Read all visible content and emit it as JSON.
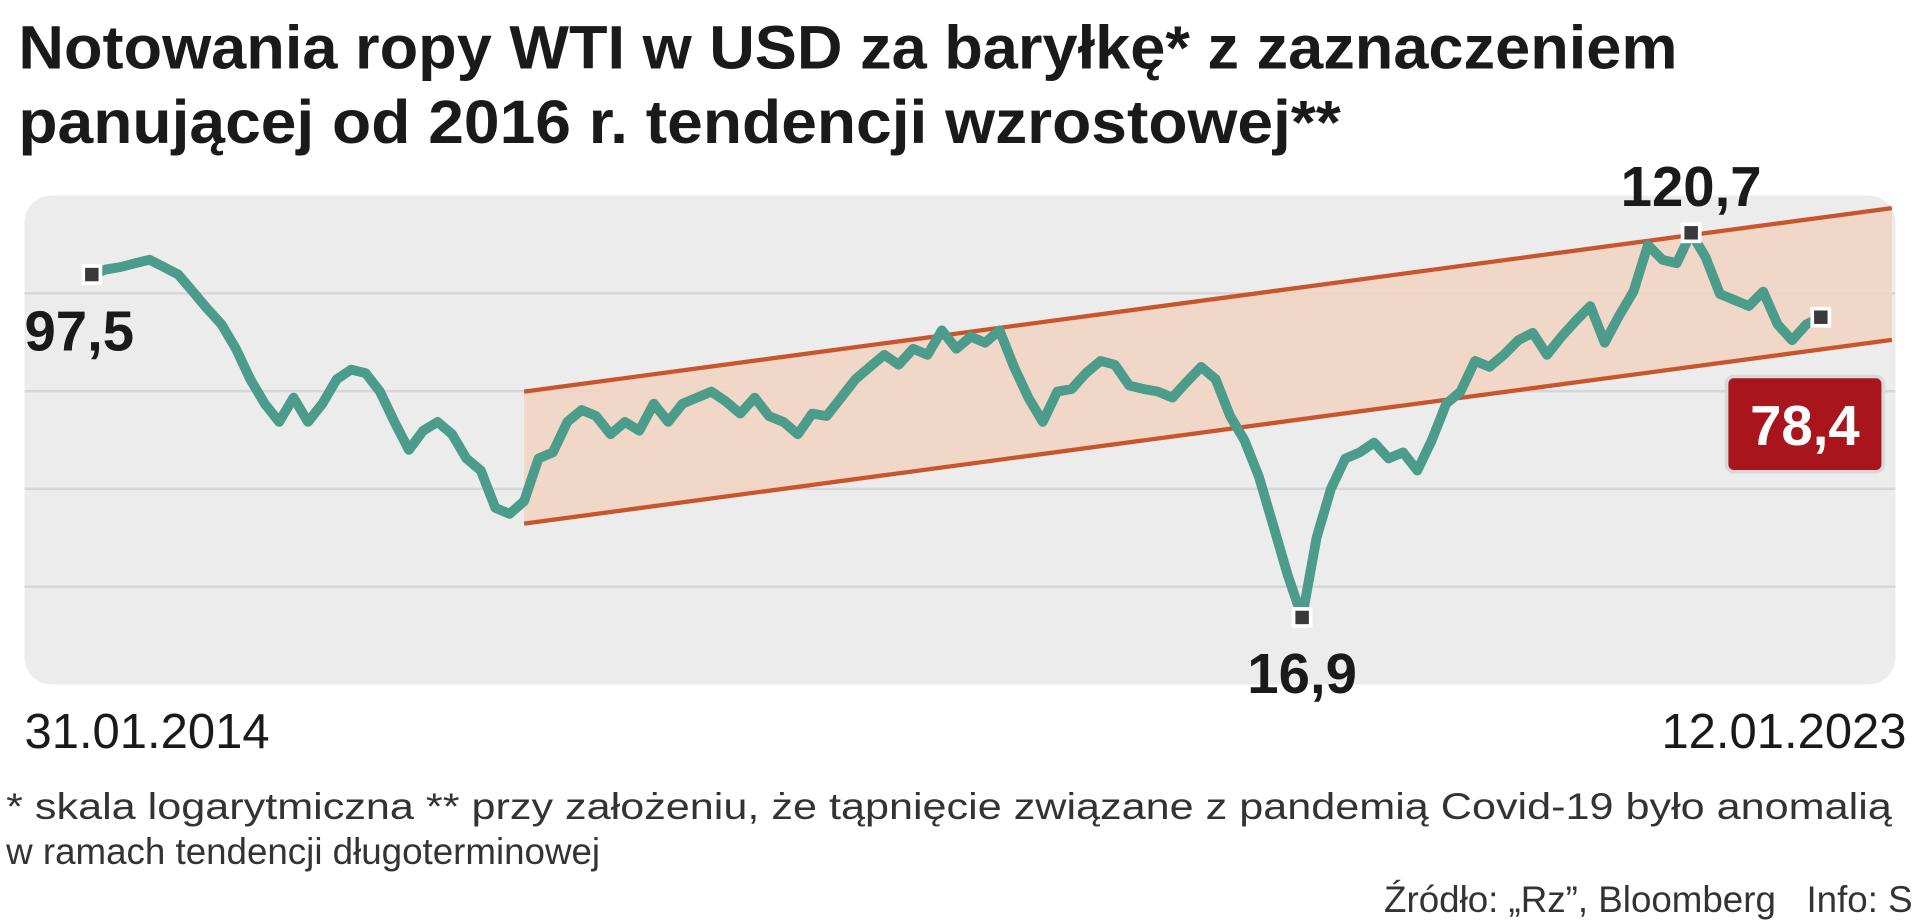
{
  "chart_data": {
    "type": "line",
    "title": [
      "Notowania ropy WTI w USD za baryłkę* z zaznaczeniem",
      "panującej od 2016 r. tendencji wzrostowej**"
    ],
    "categories": [
      "31.01.2014",
      null,
      null,
      null,
      null,
      null,
      null,
      null,
      null,
      null,
      null,
      null,
      null,
      null,
      null,
      null,
      null,
      null,
      null,
      null,
      null,
      null,
      null,
      null,
      null,
      null,
      null,
      null,
      null,
      null,
      null,
      null,
      null,
      null,
      null,
      null,
      null,
      null,
      null,
      null,
      null,
      null,
      null,
      null,
      null,
      null,
      null,
      null,
      null,
      null,
      null,
      null,
      null,
      null,
      null,
      null,
      null,
      null,
      null,
      null,
      null,
      null,
      null,
      null,
      null,
      null,
      null,
      null,
      null,
      null,
      null,
      null,
      null,
      null,
      null,
      null,
      null,
      null,
      null,
      null,
      null,
      null,
      null,
      null,
      null,
      null,
      null,
      null,
      null,
      null,
      null,
      null,
      null,
      null,
      null,
      null,
      null,
      null,
      null,
      null,
      null,
      null,
      null,
      null,
      null,
      null,
      null,
      null,
      null,
      null,
      null,
      null,
      null,
      null,
      null,
      null,
      null,
      null,
      null,
      null,
      "12.01.2023"
    ],
    "values": [
      97.5,
      100.1,
      101.3,
      103.3,
      105.2,
      101.3,
      97.5,
      89.4,
      82.0,
      75.6,
      66.7,
      57.1,
      50.4,
      45.9,
      52.0,
      45.9,
      50.4,
      57.1,
      60.0,
      58.9,
      53.6,
      45.9,
      39.8,
      43.9,
      45.9,
      43.1,
      38.1,
      35.8,
      29.6,
      28.7,
      30.6,
      38.1,
      39.3,
      45.9,
      48.8,
      47.3,
      43.1,
      45.9,
      43.9,
      50.4,
      45.9,
      50.4,
      52.0,
      53.6,
      51.0,
      47.9,
      52.0,
      47.3,
      45.9,
      43.1,
      47.9,
      47.3,
      52.0,
      57.1,
      60.8,
      64.7,
      61.5,
      66.7,
      64.7,
      73.3,
      66.7,
      71.0,
      68.8,
      73.3,
      60.8,
      52.0,
      45.9,
      53.6,
      54.3,
      58.9,
      62.7,
      61.5,
      55.3,
      54.3,
      53.6,
      52.0,
      56.4,
      60.8,
      57.1,
      47.3,
      41.8,
      34.7,
      27.0,
      21.0,
      16.9,
      25.4,
      32.6,
      38.1,
      39.3,
      41.3,
      38.1,
      39.3,
      35.8,
      41.8,
      50.4,
      53.6,
      62.7,
      60.8,
      64.7,
      69.7,
      72.4,
      64.7,
      71.0,
      77.0,
      83.0,
      68.8,
      79.0,
      89.4,
      113.4,
      105.2,
      103.3,
      120.7,
      106.5,
      88.3,
      85.6,
      83.0,
      89.4,
      75.6,
      69.7,
      75.6,
      78.4
    ],
    "value_labels": [
      "97,5",
      null,
      null,
      null,
      null,
      null,
      null,
      null,
      null,
      null,
      null,
      null,
      null,
      null,
      null,
      null,
      null,
      null,
      null,
      null,
      null,
      null,
      null,
      null,
      null,
      null,
      null,
      null,
      null,
      null,
      null,
      null,
      null,
      null,
      null,
      null,
      null,
      null,
      null,
      null,
      null,
      null,
      null,
      null,
      null,
      null,
      null,
      null,
      null,
      null,
      null,
      null,
      null,
      null,
      null,
      null,
      null,
      null,
      null,
      null,
      null,
      null,
      null,
      null,
      null,
      null,
      null,
      null,
      null,
      null,
      null,
      null,
      null,
      null,
      null,
      null,
      null,
      null,
      null,
      null,
      null,
      null,
      null,
      null,
      "16,9",
      null,
      null,
      null,
      null,
      null,
      null,
      null,
      null,
      null,
      null,
      null,
      null,
      null,
      null,
      null,
      null,
      null,
      null,
      null,
      null,
      null,
      null,
      null,
      null,
      null,
      null,
      "120,7",
      null,
      null,
      null,
      null,
      null,
      null,
      null,
      null,
      "78,4"
    ],
    "color": "#4b9c8b",
    "channel": {
      "color": "#c9552d",
      "fill": "#f2d3c2",
      "upper": [
        null,
        null,
        null,
        null,
        null,
        null,
        null,
        null,
        null,
        null,
        null,
        null,
        null,
        null,
        null,
        null,
        null,
        null,
        null,
        null,
        null,
        null,
        null,
        null,
        null,
        null,
        null,
        null,
        null,
        null,
        53.6,
        null,
        null,
        null,
        null,
        null,
        null,
        null,
        null,
        null,
        null,
        null,
        null,
        null,
        null,
        null,
        null,
        null,
        null,
        null,
        null,
        null,
        null,
        null,
        null,
        null,
        null,
        null,
        null,
        null,
        null,
        null,
        null,
        null,
        null,
        null,
        null,
        null,
        null,
        null,
        null,
        null,
        null,
        null,
        null,
        null,
        null,
        null,
        null,
        null,
        null,
        null,
        null,
        null,
        null,
        null,
        null,
        null,
        null,
        null,
        null,
        null,
        null,
        null,
        null,
        null,
        null,
        null,
        null,
        null,
        null,
        null,
        null,
        null,
        null,
        null,
        null,
        null,
        null,
        null,
        null,
        null,
        null,
        null,
        null,
        null,
        null,
        null,
        null,
        null,
        130.4
      ],
      "lower": [
        null,
        null,
        null,
        null,
        null,
        null,
        null,
        null,
        null,
        null,
        null,
        null,
        null,
        null,
        null,
        null,
        null,
        null,
        null,
        null,
        null,
        null,
        null,
        null,
        null,
        null,
        null,
        null,
        null,
        null,
        27.3,
        null,
        null,
        null,
        null,
        null,
        null,
        null,
        null,
        null,
        null,
        null,
        null,
        null,
        null,
        null,
        null,
        null,
        null,
        null,
        null,
        null,
        null,
        null,
        null,
        null,
        null,
        null,
        null,
        null,
        null,
        null,
        null,
        null,
        null,
        null,
        null,
        null,
        null,
        null,
        null,
        null,
        null,
        null,
        null,
        null,
        null,
        null,
        null,
        null,
        null,
        null,
        null,
        null,
        null,
        null,
        null,
        null,
        null,
        null,
        null,
        null,
        null,
        null,
        null,
        null,
        null,
        null,
        null,
        null,
        null,
        null,
        null,
        null,
        null,
        null,
        null,
        null,
        null,
        null,
        null,
        null,
        null,
        null,
        null,
        null,
        null,
        null,
        null,
        null,
        66.5
      ]
    },
    "log_scale": true,
    "ylim": [
      12,
      146
    ],
    "highlight_color": "#a8151c",
    "notes": [
      "* skala logarytmiczna ** przy założeniu, że tąpnięcie związane z pandemią Covid-19 było anomalią",
      "w ramach tendencji długoterminowej"
    ],
    "source": "Źródło: „Rz”, Bloomberg   Info: S"
  }
}
